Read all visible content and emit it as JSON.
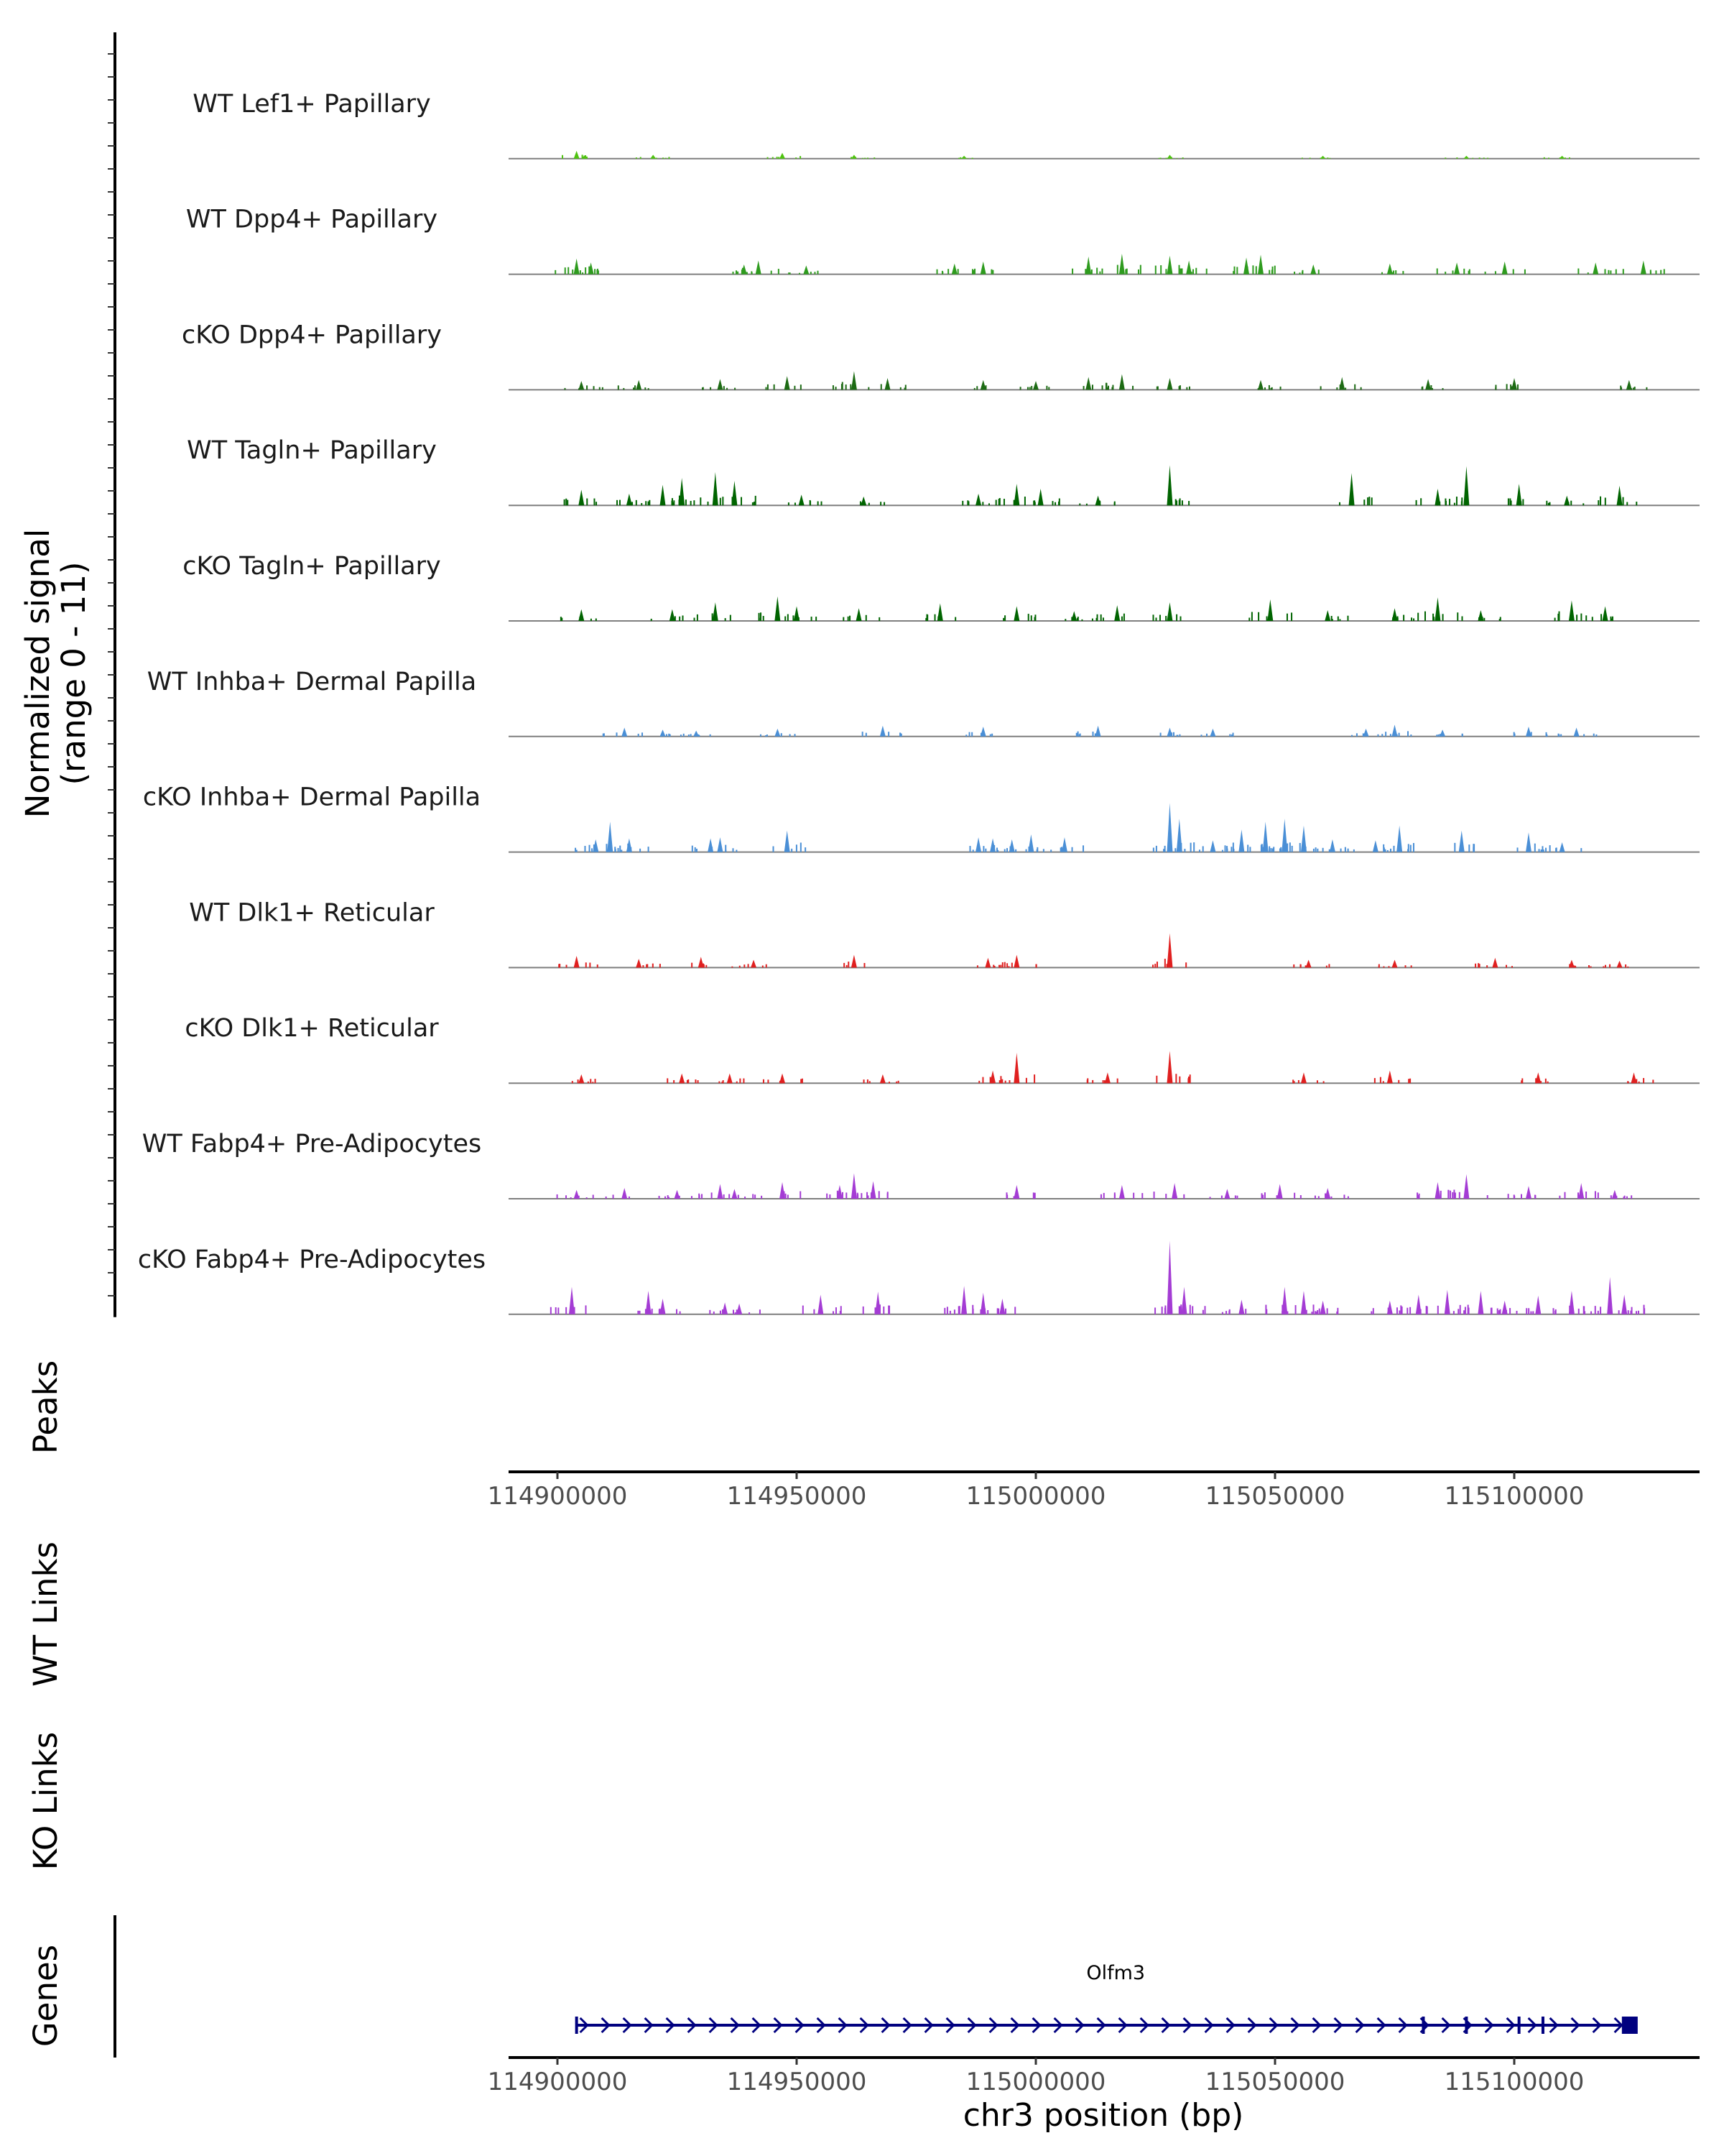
{
  "chart_data": {
    "type": "area",
    "chromosome": "chr3",
    "xlim": [
      114880000,
      115140000
    ],
    "x_ticks": [
      114900000,
      114950000,
      115000000,
      115050000,
      115100000
    ],
    "x_tick_labels": [
      "114900000",
      "114950000",
      "115000000",
      "115050000",
      "115100000"
    ],
    "xlabel": "chr3 position (bp)",
    "coverage_ylabel": [
      "Normalized signal",
      "(range 0 - 11)"
    ],
    "ylim": [
      0,
      11
    ],
    "panel_labels": {
      "peaks": "Peaks",
      "wt_links": "WT Links",
      "ko_links": "KO Links",
      "genes": "Genes"
    },
    "tracks": [
      {
        "name": "WT Lef1+ Papillary",
        "color": "#4fc310",
        "peaks": [
          [
            114904000,
            0.8
          ],
          [
            114920000,
            0.4
          ],
          [
            114947000,
            0.6
          ],
          [
            114962000,
            0.4
          ],
          [
            114985000,
            0.3
          ],
          [
            115028000,
            0.4
          ],
          [
            115060000,
            0.3
          ],
          [
            115090000,
            0.3
          ],
          [
            115110000,
            0.3
          ]
        ]
      },
      {
        "name": "WT Dpp4+ Papillary",
        "color": "#2e9b1e",
        "peaks": [
          [
            114904000,
            1.6
          ],
          [
            114907000,
            1.2
          ],
          [
            114939000,
            1.0
          ],
          [
            114942000,
            1.4
          ],
          [
            114952000,
            0.9
          ],
          [
            114983000,
            1.1
          ],
          [
            114989000,
            1.3
          ],
          [
            115011000,
            1.8
          ],
          [
            115018000,
            2.1
          ],
          [
            115028000,
            1.9
          ],
          [
            115032000,
            1.4
          ],
          [
            115044000,
            1.7
          ],
          [
            115047000,
            2.0
          ],
          [
            115058000,
            1.0
          ],
          [
            115074000,
            1.1
          ],
          [
            115088000,
            1.2
          ],
          [
            115098000,
            1.3
          ],
          [
            115117000,
            1.2
          ],
          [
            115127000,
            1.4
          ]
        ]
      },
      {
        "name": "cKO Dpp4+ Papillary",
        "color": "#1d6b14",
        "peaks": [
          [
            114905000,
            0.9
          ],
          [
            114917000,
            1.0
          ],
          [
            114934000,
            1.1
          ],
          [
            114948000,
            1.4
          ],
          [
            114962000,
            1.9
          ],
          [
            114969000,
            1.2
          ],
          [
            114989000,
            1.0
          ],
          [
            115000000,
            0.9
          ],
          [
            115011000,
            1.3
          ],
          [
            115018000,
            1.6
          ],
          [
            115028000,
            1.2
          ],
          [
            115047000,
            1.0
          ],
          [
            115064000,
            1.3
          ],
          [
            115082000,
            1.1
          ],
          [
            115100000,
            1.2
          ],
          [
            115124000,
            1.0
          ]
        ]
      },
      {
        "name": "WT Tagln+ Papillary",
        "color": "#006400",
        "peaks": [
          [
            114905000,
            1.6
          ],
          [
            114915000,
            1.2
          ],
          [
            114922000,
            2.1
          ],
          [
            114926000,
            2.8
          ],
          [
            114933000,
            3.4
          ],
          [
            114937000,
            2.5
          ],
          [
            114951000,
            1.1
          ],
          [
            114964000,
            0.9
          ],
          [
            114988000,
            1.2
          ],
          [
            114996000,
            2.2
          ],
          [
            115001000,
            1.7
          ],
          [
            115013000,
            1.0
          ],
          [
            115028000,
            4.1
          ],
          [
            115066000,
            3.3
          ],
          [
            115084000,
            1.7
          ],
          [
            115090000,
            4.0
          ],
          [
            115101000,
            2.2
          ],
          [
            115111000,
            1.0
          ],
          [
            115122000,
            2.0
          ]
        ]
      },
      {
        "name": "cKO Tagln+ Papillary",
        "color": "#006400",
        "peaks": [
          [
            114905000,
            1.2
          ],
          [
            114924000,
            1.2
          ],
          [
            114933000,
            1.9
          ],
          [
            114946000,
            2.5
          ],
          [
            114950000,
            1.5
          ],
          [
            114963000,
            1.3
          ],
          [
            114980000,
            1.8
          ],
          [
            114996000,
            1.5
          ],
          [
            115008000,
            1.0
          ],
          [
            115017000,
            1.6
          ],
          [
            115028000,
            1.9
          ],
          [
            115049000,
            2.2
          ],
          [
            115061000,
            1.1
          ],
          [
            115075000,
            1.3
          ],
          [
            115084000,
            2.4
          ],
          [
            115093000,
            1.1
          ],
          [
            115112000,
            2.1
          ],
          [
            115119000,
            1.5
          ]
        ]
      },
      {
        "name": "WT Inhba+ Dermal Papilla",
        "color": "#4a8fd6",
        "peaks": [
          [
            114914000,
            0.9
          ],
          [
            114922000,
            0.7
          ],
          [
            114929000,
            0.6
          ],
          [
            114946000,
            0.8
          ],
          [
            114968000,
            1.1
          ],
          [
            114989000,
            1.0
          ],
          [
            115013000,
            1.1
          ],
          [
            115028000,
            0.9
          ],
          [
            115037000,
            0.8
          ],
          [
            115069000,
            0.8
          ],
          [
            115075000,
            1.2
          ],
          [
            115085000,
            0.7
          ],
          [
            115103000,
            1.0
          ],
          [
            115113000,
            0.9
          ]
        ]
      },
      {
        "name": "cKO Inhba+ Dermal Papilla",
        "color": "#4a8fd6",
        "peaks": [
          [
            114908000,
            1.3
          ],
          [
            114911000,
            3.1
          ],
          [
            114915000,
            1.4
          ],
          [
            114932000,
            1.4
          ],
          [
            114934000,
            1.5
          ],
          [
            114948000,
            2.2
          ],
          [
            114988000,
            1.5
          ],
          [
            114991000,
            1.4
          ],
          [
            114995000,
            1.3
          ],
          [
            114999000,
            1.8
          ],
          [
            115006000,
            1.5
          ],
          [
            115028000,
            5.0
          ],
          [
            115030000,
            3.4
          ],
          [
            115037000,
            1.2
          ],
          [
            115043000,
            2.3
          ],
          [
            115048000,
            3.1
          ],
          [
            115052000,
            3.4
          ],
          [
            115056000,
            2.7
          ],
          [
            115062000,
            1.3
          ],
          [
            115071000,
            1.2
          ],
          [
            115076000,
            2.7
          ],
          [
            115089000,
            2.2
          ],
          [
            115103000,
            2.0
          ],
          [
            115110000,
            1.0
          ]
        ]
      },
      {
        "name": "WT Dlk1+ Reticular",
        "color": "#e02020",
        "peaks": [
          [
            114904000,
            1.2
          ],
          [
            114917000,
            0.9
          ],
          [
            114930000,
            1.1
          ],
          [
            114941000,
            0.8
          ],
          [
            114962000,
            1.3
          ],
          [
            114990000,
            1.0
          ],
          [
            114996000,
            1.3
          ],
          [
            115028000,
            3.5
          ],
          [
            115057000,
            0.8
          ],
          [
            115075000,
            0.8
          ],
          [
            115096000,
            1.0
          ],
          [
            115112000,
            0.8
          ],
          [
            115122000,
            0.7
          ]
        ]
      },
      {
        "name": "cKO Dlk1+ Reticular",
        "color": "#e02020",
        "peaks": [
          [
            114905000,
            0.9
          ],
          [
            114926000,
            1.0
          ],
          [
            114936000,
            1.0
          ],
          [
            114947000,
            1.0
          ],
          [
            114968000,
            0.9
          ],
          [
            114991000,
            1.3
          ],
          [
            114996000,
            3.1
          ],
          [
            115015000,
            1.1
          ],
          [
            115028000,
            3.3
          ],
          [
            115056000,
            1.1
          ],
          [
            115074000,
            1.3
          ],
          [
            115105000,
            1.1
          ],
          [
            115125000,
            1.1
          ]
        ]
      },
      {
        "name": "WT Fabp4+ Pre-Adipocytes",
        "color": "#a43cd4",
        "peaks": [
          [
            114904000,
            0.9
          ],
          [
            114914000,
            1.1
          ],
          [
            114925000,
            0.9
          ],
          [
            114934000,
            1.5
          ],
          [
            114937000,
            1.0
          ],
          [
            114947000,
            1.7
          ],
          [
            114959000,
            1.4
          ],
          [
            114962000,
            2.6
          ],
          [
            114966000,
            1.8
          ],
          [
            114996000,
            1.4
          ],
          [
            115018000,
            1.4
          ],
          [
            115029000,
            1.6
          ],
          [
            115040000,
            1.0
          ],
          [
            115051000,
            1.5
          ],
          [
            115061000,
            1.1
          ],
          [
            115084000,
            1.7
          ],
          [
            115090000,
            2.5
          ],
          [
            115103000,
            1.3
          ],
          [
            115114000,
            1.6
          ],
          [
            115121000,
            0.9
          ]
        ]
      },
      {
        "name": "cKO Fabp4+ Pre-Adipocytes",
        "color": "#a43cd4",
        "peaks": [
          [
            114903000,
            2.8
          ],
          [
            114919000,
            2.4
          ],
          [
            114922000,
            1.6
          ],
          [
            114935000,
            1.2
          ],
          [
            114938000,
            1.1
          ],
          [
            114955000,
            2.0
          ],
          [
            114967000,
            2.3
          ],
          [
            114985000,
            2.9
          ],
          [
            114989000,
            2.2
          ],
          [
            114993000,
            1.6
          ],
          [
            115028000,
            7.5
          ],
          [
            115031000,
            2.8
          ],
          [
            115043000,
            1.5
          ],
          [
            115052000,
            2.8
          ],
          [
            115056000,
            2.4
          ],
          [
            115060000,
            1.4
          ],
          [
            115074000,
            1.4
          ],
          [
            115080000,
            2.0
          ],
          [
            115086000,
            2.5
          ],
          [
            115093000,
            2.4
          ],
          [
            115098000,
            1.4
          ],
          [
            115105000,
            1.9
          ],
          [
            115112000,
            2.4
          ],
          [
            115120000,
            3.8
          ],
          [
            115123000,
            2.0
          ]
        ]
      }
    ],
    "genes": [
      {
        "name": "Olfm3",
        "start": 114904000,
        "end": 115124000,
        "strand": "+",
        "color": "#00007f",
        "exons": [
          114904000,
          115081000,
          115090000,
          115101000,
          115106000,
          115124000
        ]
      }
    ]
  }
}
